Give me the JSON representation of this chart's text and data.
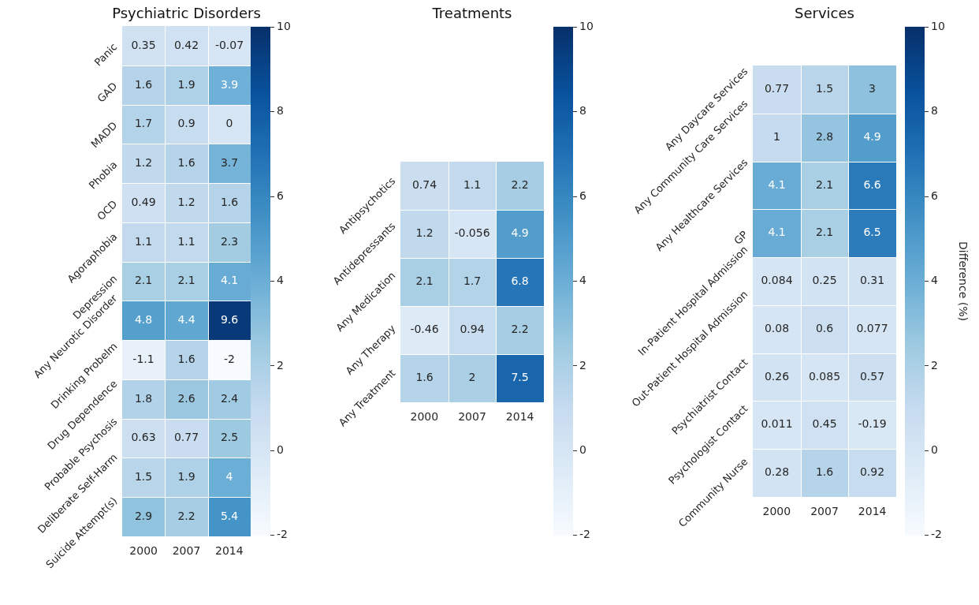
{
  "chart_data": [
    {
      "type": "heatmap",
      "title": "Psychiatric Disorders",
      "categories": [
        "2000",
        "2007",
        "2014"
      ],
      "y_categories": [
        "Panic",
        "GAD",
        "MADD",
        "Phobia",
        "OCD",
        "Agoraphobia",
        "Depression",
        "Any Neurotic Disorder",
        "Drinking Probelm",
        "Drug Dependence",
        "Probable Psychosis",
        "Deliberate Self-Harm",
        "Suicide Attempt(s)"
      ],
      "cells": [
        [
          0.35,
          0.42,
          -0.07
        ],
        [
          1.6,
          1.9,
          3.9
        ],
        [
          1.7,
          0.9,
          0
        ],
        [
          1.2,
          1.6,
          3.7
        ],
        [
          0.49,
          1.2,
          1.6
        ],
        [
          1.1,
          1.1,
          2.3
        ],
        [
          2.1,
          2.1,
          4.1
        ],
        [
          4.8,
          4.4,
          9.6
        ],
        [
          -1.1,
          1.6,
          -2
        ],
        [
          1.8,
          2.6,
          2.4
        ],
        [
          0.63,
          0.77,
          2.5
        ],
        [
          1.5,
          1.9,
          4
        ],
        [
          2.9,
          2.2,
          5.4
        ]
      ],
      "clim": [
        -2,
        10
      ],
      "cticks": [
        -2,
        0,
        2,
        4,
        6,
        8,
        10
      ],
      "data_labels": true
    },
    {
      "type": "heatmap",
      "title": "Treatments",
      "categories": [
        "2000",
        "2007",
        "2014"
      ],
      "y_categories": [
        "Antipsychotics",
        "Antidepressants",
        "Any Medication",
        "Any Therapy",
        "Any Treatment"
      ],
      "cells": [
        [
          0.74,
          1.1,
          2.2
        ],
        [
          1.2,
          -0.056,
          4.9
        ],
        [
          2.1,
          1.7,
          6.8
        ],
        [
          -0.46,
          0.94,
          2.2
        ],
        [
          1.6,
          2,
          7.5
        ]
      ],
      "clim": [
        -2,
        10
      ],
      "cticks": [
        -2,
        0,
        2,
        4,
        6,
        8,
        10
      ],
      "data_labels": true
    },
    {
      "type": "heatmap",
      "title": "Services",
      "categories": [
        "2000",
        "2007",
        "2014"
      ],
      "y_categories": [
        "Any Daycare Services",
        "Any Community Care Services",
        "Any Healthcare Services",
        "GP",
        "In-Patient Hospital Admission",
        "Out-Patient Hospital Admission",
        "Psychiatrist Contact",
        "Psychologist Contact",
        "Community Nurse"
      ],
      "cells": [
        [
          0.77,
          1.5,
          3
        ],
        [
          1,
          2.8,
          4.9
        ],
        [
          4.1,
          2.1,
          6.6
        ],
        [
          4.1,
          2.1,
          6.5
        ],
        [
          0.084,
          0.25,
          0.31
        ],
        [
          0.08,
          0.6,
          0.077
        ],
        [
          0.26,
          0.085,
          0.57
        ],
        [
          0.011,
          0.45,
          -0.19
        ],
        [
          0.28,
          1.6,
          0.92
        ]
      ],
      "clim": [
        -2,
        10
      ],
      "cticks": [
        -2,
        0,
        2,
        4,
        6,
        8,
        10
      ],
      "clabel": "Difference (%)",
      "data_labels": true
    }
  ]
}
